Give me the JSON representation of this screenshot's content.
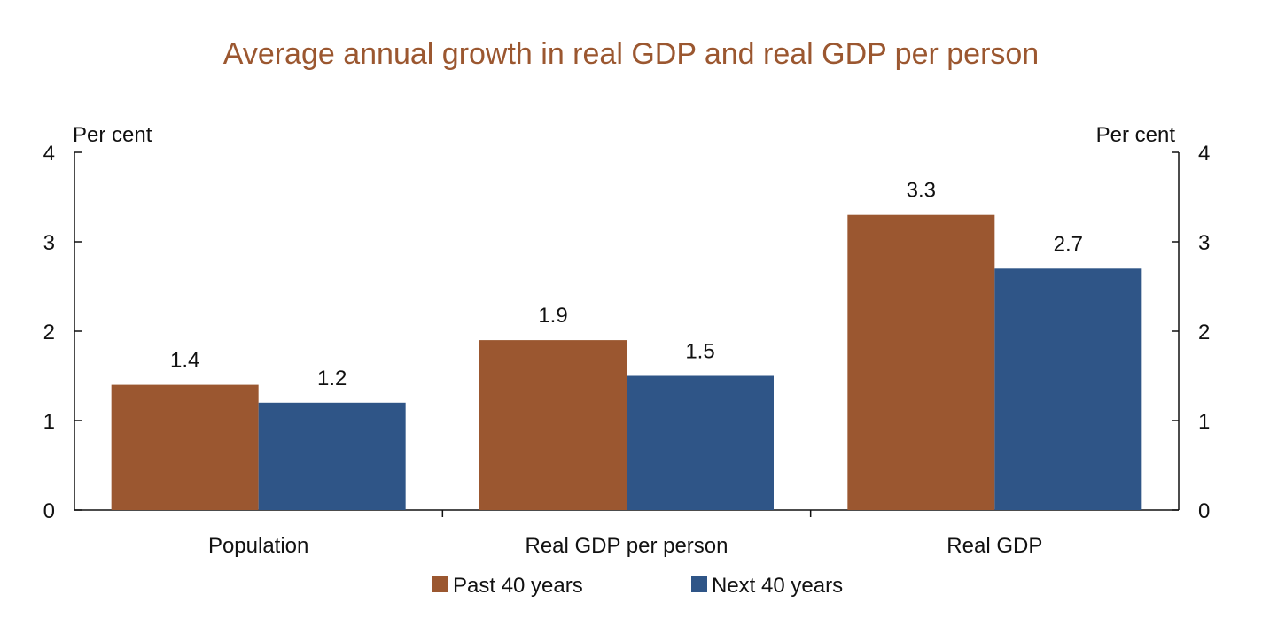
{
  "title": "Average annual growth in real GDP and real GDP per person",
  "chart_data": {
    "type": "bar",
    "title": "Average annual growth in real GDP and real GDP per person",
    "ylabel_left": "Per cent",
    "ylabel_right": "Per cent",
    "ylim": [
      0,
      4
    ],
    "yticks": [
      0,
      1,
      2,
      3,
      4
    ],
    "categories": [
      "Population",
      "Real GDP per person",
      "Real GDP"
    ],
    "series": [
      {
        "name": "Past 40 years",
        "color": "#9b5730",
        "values": [
          1.4,
          1.9,
          3.3
        ],
        "labels": [
          "1.4",
          "1.9",
          "3.3"
        ]
      },
      {
        "name": "Next 40 years",
        "color": "#2f5587",
        "values": [
          1.2,
          1.5,
          2.7
        ],
        "labels": [
          "1.2",
          "1.5",
          "2.7"
        ]
      }
    ],
    "legend_position": "bottom-center",
    "grid": false
  }
}
